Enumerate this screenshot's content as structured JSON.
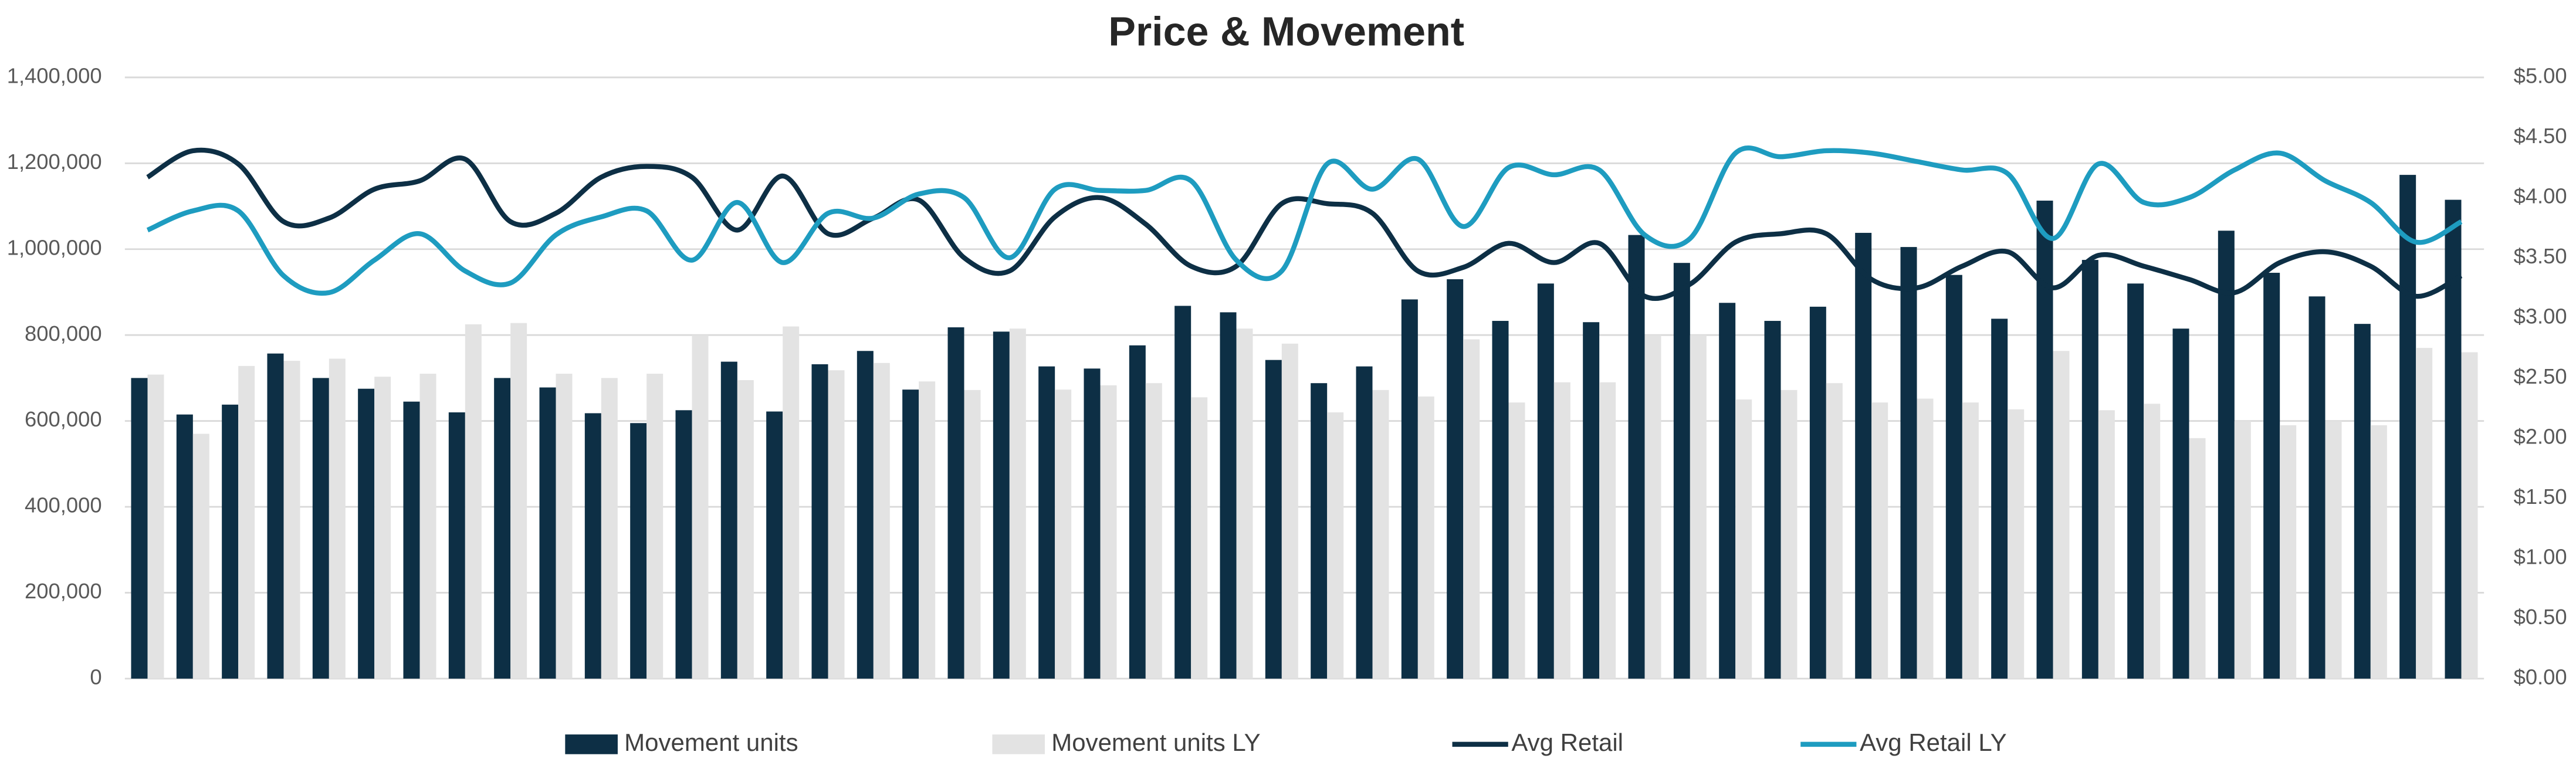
{
  "chart_data": {
    "type": "bar-line",
    "title": "Price & Movement",
    "categories": [
      null,
      null,
      null,
      null,
      null,
      null,
      null,
      null,
      null,
      null,
      null,
      null,
      null,
      null,
      null,
      null,
      null,
      null,
      null,
      null,
      null,
      null,
      null,
      null,
      null,
      null,
      null,
      null,
      null,
      null,
      null,
      null,
      null,
      null,
      null,
      null,
      null,
      null,
      null,
      null,
      null,
      null,
      null,
      null,
      null,
      null,
      null,
      null,
      null,
      null,
      null,
      null
    ],
    "series": [
      {
        "name": "Movement units",
        "type": "bar",
        "color": "#0d2f45",
        "values": [
          700000,
          615000,
          638000,
          757000,
          700000,
          675000,
          645000,
          620000,
          700000,
          678000,
          618000,
          595000,
          625000,
          738000,
          622000,
          732000,
          763000,
          673000,
          818000,
          808000,
          727000,
          722000,
          776000,
          868000,
          853000,
          742000,
          688000,
          727000,
          883000,
          930000,
          833000,
          920000,
          830000,
          1033000,
          968000,
          875000,
          833000,
          866000,
          1038000,
          1005000,
          940000,
          838000,
          1113000,
          975000,
          920000,
          815000,
          1043000,
          945000,
          890000,
          826000,
          1173000,
          1115000
        ]
      },
      {
        "name": "Movement units LY",
        "type": "bar",
        "color": "#e3e3e3",
        "values": [
          708000,
          570000,
          728000,
          740000,
          745000,
          703000,
          710000,
          825000,
          828000,
          710000,
          700000,
          710000,
          800000,
          695000,
          820000,
          718000,
          735000,
          692000,
          672000,
          815000,
          673000,
          683000,
          688000,
          655000,
          815000,
          780000,
          620000,
          672000,
          657000,
          790000,
          643000,
          690000,
          690000,
          800000,
          800000,
          650000,
          672000,
          688000,
          643000,
          652000,
          643000,
          627000,
          763000,
          625000,
          640000,
          560000,
          600000,
          590000,
          600000,
          590000,
          770000,
          760000
        ]
      },
      {
        "name": "Avg Retail",
        "type": "line",
        "axis": "y2",
        "color": "#0d2f45",
        "values": [
          4.17,
          4.39,
          4.28,
          3.8,
          3.83,
          4.07,
          4.14,
          4.32,
          3.8,
          3.87,
          4.17,
          4.26,
          4.17,
          3.73,
          4.18,
          3.7,
          3.83,
          3.98,
          3.5,
          3.39,
          3.84,
          4.0,
          3.78,
          3.43,
          3.43,
          3.95,
          3.95,
          3.87,
          3.39,
          3.42,
          3.62,
          3.46,
          3.62,
          3.18,
          3.28,
          3.63,
          3.7,
          3.7,
          3.32,
          3.25,
          3.43,
          3.55,
          3.25,
          3.52,
          3.43,
          3.32,
          3.21,
          3.46,
          3.55,
          3.43,
          3.18,
          3.35
        ]
      },
      {
        "name": "Avg Retail LY",
        "type": "line",
        "axis": "y2",
        "color": "#1e9cc0",
        "values": [
          3.73,
          3.89,
          3.89,
          3.35,
          3.21,
          3.48,
          3.7,
          3.39,
          3.29,
          3.69,
          3.84,
          3.89,
          3.48,
          3.96,
          3.46,
          3.87,
          3.83,
          4.03,
          4.0,
          3.5,
          4.07,
          4.06,
          4.06,
          4.14,
          3.48,
          3.39,
          4.28,
          4.07,
          4.32,
          3.76,
          4.25,
          4.19,
          4.23,
          3.69,
          3.66,
          4.37,
          4.34,
          4.39,
          4.37,
          4.3,
          4.23,
          4.2,
          3.66,
          4.28,
          3.96,
          4.0,
          4.23,
          4.37,
          4.14,
          3.96,
          3.63,
          3.8
        ]
      }
    ],
    "ylim": [
      0,
      1400000
    ],
    "yticks": [
      0,
      {
        "value": 200000,
        "label": "200,000"
      },
      {
        "value": 400000,
        "label": "400,000"
      },
      {
        "value": 600000,
        "label": "600,000"
      },
      {
        "value": 800000,
        "label": "800,000"
      },
      {
        "value": 1000000,
        "label": "1,000,000"
      },
      {
        "value": 1200000,
        "label": "1,200,000"
      },
      {
        "value": 1400000,
        "label": "1,400,000"
      }
    ],
    "y2lim": [
      0,
      5
    ],
    "y2ticks": [
      {
        "value": 0,
        "label": "$0.00"
      },
      {
        "value": 0.5,
        "label": "$0.50"
      },
      {
        "value": 1,
        "label": "$1.00"
      },
      {
        "value": 1.5,
        "label": "$1.50"
      },
      {
        "value": 2,
        "label": "$2.00"
      },
      {
        "value": 2.5,
        "label": "$2.50"
      },
      {
        "value": 3,
        "label": "$3.00"
      },
      {
        "value": 3.5,
        "label": "$3.50"
      },
      {
        "value": 4,
        "label": "$4.00"
      },
      {
        "value": 4.5,
        "label": "$4.50"
      },
      {
        "value": 5,
        "label": "$5.00"
      }
    ],
    "grid": true,
    "legend": "bottom"
  }
}
